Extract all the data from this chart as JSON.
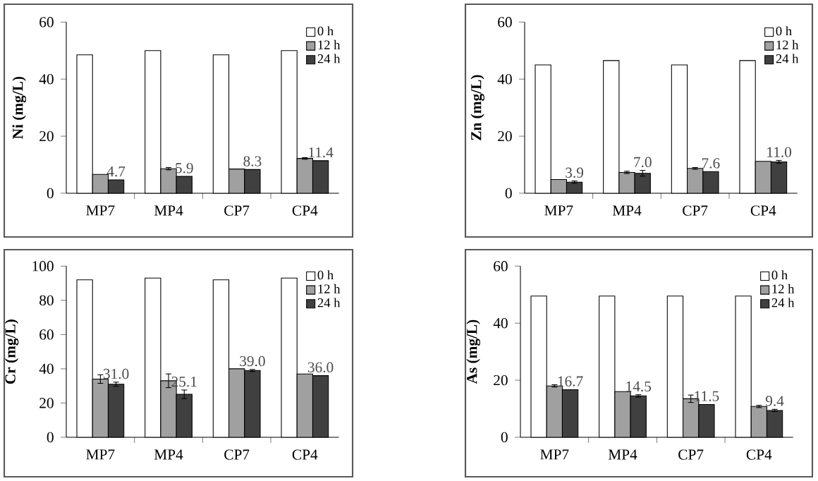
{
  "chart_data": [
    {
      "type": "bar",
      "ylabel": "Ni (mg/L)",
      "categories": [
        "MP7",
        "MP4",
        "CP7",
        "CP4"
      ],
      "ylim": [
        0,
        60
      ],
      "yticks": [
        0,
        20,
        40,
        60
      ],
      "legend": "top right",
      "series": [
        {
          "name": "0 h",
          "color": "#ffffff",
          "values": [
            48.5,
            50,
            48.5,
            50
          ]
        },
        {
          "name": "12 h",
          "color": "#a0a0a0",
          "values": [
            6.6,
            8.6,
            8.5,
            12.2
          ],
          "errors": [
            null,
            0.4,
            null,
            0.3
          ]
        },
        {
          "name": "24 h",
          "color": "#404040",
          "values": [
            4.7,
            5.9,
            8.3,
            11.4
          ],
          "errors": [
            null,
            null,
            null,
            null
          ],
          "value_labels": [
            "4.7",
            "5.9",
            "8.3",
            "11.4"
          ]
        }
      ]
    },
    {
      "type": "bar",
      "ylabel": "Zn (mg/L)",
      "categories": [
        "MP7",
        "MP4",
        "CP7",
        "CP4"
      ],
      "ylim": [
        0,
        60
      ],
      "yticks": [
        0,
        20,
        40,
        60
      ],
      "legend": "top right",
      "series": [
        {
          "name": "0 h",
          "color": "#ffffff",
          "values": [
            45,
            46.5,
            45,
            46.5
          ]
        },
        {
          "name": "12 h",
          "color": "#a0a0a0",
          "values": [
            4.8,
            7.3,
            8.7,
            11.2
          ],
          "errors": [
            null,
            0.4,
            0.3,
            null
          ]
        },
        {
          "name": "24 h",
          "color": "#404040",
          "values": [
            3.9,
            7.0,
            7.6,
            11.0
          ],
          "errors": [
            0.4,
            1.0,
            null,
            0.5
          ],
          "value_labels": [
            "3.9",
            "7.0",
            "7.6",
            "11.0"
          ]
        }
      ]
    },
    {
      "type": "bar",
      "ylabel": "Cr (mg/L)",
      "categories": [
        "MP7",
        "MP4",
        "CP7",
        "CP4"
      ],
      "ylim": [
        0,
        100
      ],
      "yticks": [
        0,
        20,
        40,
        60,
        80,
        100
      ],
      "legend": "top right",
      "series": [
        {
          "name": "0 h",
          "color": "#ffffff",
          "values": [
            92,
            93,
            92,
            93
          ]
        },
        {
          "name": "12 h",
          "color": "#a0a0a0",
          "values": [
            34,
            33,
            40,
            37
          ],
          "errors": [
            2.5,
            4,
            null,
            null
          ]
        },
        {
          "name": "24 h",
          "color": "#404040",
          "values": [
            31.0,
            25.1,
            39.0,
            36.0
          ],
          "errors": [
            1.2,
            2.5,
            0.6,
            null
          ],
          "value_labels": [
            "31.0",
            "25.1",
            "39.0",
            "36.0"
          ]
        }
      ]
    },
    {
      "type": "bar",
      "ylabel": "As (mg/L)",
      "categories": [
        "MP7",
        "MP4",
        "CP7",
        "CP4"
      ],
      "ylim": [
        0,
        60
      ],
      "yticks": [
        0,
        20,
        40,
        60
      ],
      "legend": "top right",
      "series": [
        {
          "name": "0 h",
          "color": "#ffffff",
          "values": [
            49.5,
            49.5,
            49.5,
            49.5
          ]
        },
        {
          "name": "12 h",
          "color": "#a0a0a0",
          "values": [
            18,
            16,
            13.5,
            10.8
          ],
          "errors": [
            0.4,
            null,
            1.3,
            0.4
          ]
        },
        {
          "name": "24 h",
          "color": "#404040",
          "values": [
            16.7,
            14.5,
            11.5,
            9.4
          ],
          "errors": [
            null,
            0.4,
            null,
            0.4
          ],
          "value_labels": [
            "16.7",
            "14.5",
            "11.5",
            "9.4"
          ]
        }
      ]
    }
  ]
}
